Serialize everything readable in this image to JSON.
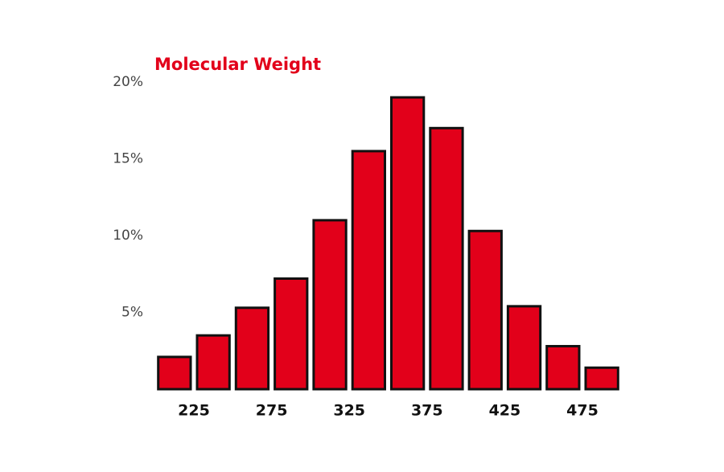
{
  "chart_data": {
    "type": "histogram",
    "title": "Molecular Weight",
    "bins": [
      200,
      225,
      250,
      275,
      300,
      325,
      350,
      375,
      400,
      425,
      450,
      475,
      500
    ],
    "values": [
      2.1,
      3.5,
      5.3,
      7.2,
      11.0,
      15.5,
      19.0,
      17.0,
      10.3,
      5.4,
      2.8,
      1.4
    ],
    "color": "#e2001a",
    "xlim": [
      200,
      500
    ],
    "xticks": [
      225,
      275,
      325,
      375,
      425,
      475
    ],
    "ylim": [
      0,
      20
    ],
    "yticks": [
      {
        "value": 5,
        "label": "5%"
      },
      {
        "value": 10,
        "label": "10%"
      },
      {
        "value": 15,
        "label": "15%"
      },
      {
        "value": 20,
        "label": "20%"
      }
    ],
    "grid": false
  }
}
